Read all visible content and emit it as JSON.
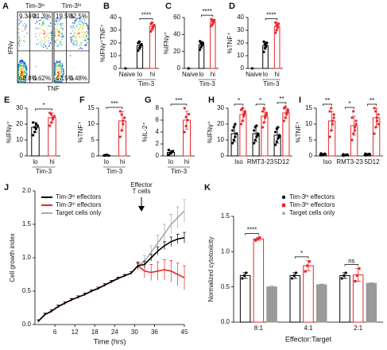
{
  "chart_data": [
    {
      "type": "flow",
      "letter": "A",
      "xlabel": "TNF",
      "ylabel": "IFNγ",
      "plots": [
        {
          "title": "Tim-3ˡᵒ",
          "quadrants": [
            9.34,
            21.3,
            68.8,
            0.62
          ],
          "value_labels": [
            "9.34%",
            "21.3%",
            "68.8%",
            "0.62%"
          ]
        },
        {
          "title": "Tim-3ʰⁱ",
          "quadrants": [
            19.5,
            32.5,
            47.5,
            0.48
          ],
          "value_labels": [
            "19.5%",
            "32.5%",
            "47.5%",
            "0.48%"
          ]
        }
      ]
    },
    {
      "type": "dot_bar",
      "letter": "B",
      "ylabel": "%IFNγ⁺TNF⁺",
      "categories": [
        "Naive",
        "lo",
        "hi"
      ],
      "group_label": "Tim-3",
      "series": [
        {
          "colors": [
            "#000000",
            "#000000",
            "#e8262a"
          ],
          "values": [
            0,
            18,
            33
          ],
          "errors": [
            0,
            3,
            3
          ],
          "points": [
            [
              0
            ],
            [
              14,
              16,
              18,
              19,
              20,
              21,
              17
            ],
            [
              29,
              31,
              33,
              34,
              35,
              36,
              32
            ]
          ]
        }
      ],
      "ylim": [
        0,
        40
      ],
      "yticks": [
        0,
        10,
        20,
        30,
        40
      ],
      "sig": [
        "****"
      ]
    },
    {
      "type": "dot_bar",
      "letter": "C",
      "ylabel": "%IFNγ⁺",
      "categories": [
        "Naive",
        "lo",
        "hi"
      ],
      "group_label": "Tim-3",
      "series": [
        {
          "colors": [
            "#000000",
            "#000000",
            "#e8262a"
          ],
          "values": [
            0,
            28,
            55
          ],
          "errors": [
            0,
            4,
            3
          ],
          "points": [
            [
              0
            ],
            [
              22,
              25,
              28,
              30,
              32,
              30,
              27
            ],
            [
              50,
              52,
              55,
              57,
              58,
              56,
              54
            ]
          ]
        }
      ],
      "ylim": [
        0,
        60
      ],
      "yticks": [
        0,
        20,
        40,
        60
      ],
      "sig": [
        "****"
      ]
    },
    {
      "type": "dot_bar",
      "letter": "D",
      "ylabel": "%TNF⁺",
      "categories": [
        "Naive",
        "lo",
        "hi"
      ],
      "group_label": "Tim-3",
      "series": [
        {
          "colors": [
            "#000000",
            "#000000",
            "#e8262a"
          ],
          "values": [
            0,
            18,
            33
          ],
          "errors": [
            0,
            3,
            3
          ],
          "points": [
            [
              0
            ],
            [
              13,
              16,
              18,
              20,
              21,
              19,
              17
            ],
            [
              28,
              30,
              33,
              35,
              36,
              34,
              32
            ]
          ]
        }
      ],
      "ylim": [
        0,
        40
      ],
      "yticks": [
        0,
        10,
        20,
        30,
        40
      ],
      "sig": [
        "****"
      ]
    },
    {
      "type": "dot_bar",
      "letter": "E",
      "ylabel": "%IFNγ⁺",
      "categories": [
        "lo",
        "hi"
      ],
      "group_label": "Tim-3",
      "series": [
        {
          "colors": [
            "#000000",
            "#e8262a"
          ],
          "values": [
            18,
            24
          ],
          "errors": [
            3,
            3
          ],
          "points": [
            [
              13,
              15,
              17,
              19,
              21,
              18,
              20
            ],
            [
              19,
              21,
              23,
              25,
              27,
              26,
              24
            ]
          ]
        }
      ],
      "ylim": [
        0,
        30
      ],
      "yticks": [
        0,
        10,
        20,
        30
      ],
      "sig": [
        "*"
      ]
    },
    {
      "type": "dot_bar",
      "letter": "F",
      "ylabel": "%TNF⁺",
      "categories": [
        "lo",
        "hi"
      ],
      "group_label": "Tim-3",
      "series": [
        {
          "colors": [
            "#000000",
            "#e8262a"
          ],
          "values": [
            0.2,
            11
          ],
          "errors": [
            0.1,
            3
          ],
          "points": [
            [
              0.1,
              0.2,
              0.3,
              0.1,
              0.2,
              0.3,
              0.2
            ],
            [
              6,
              8,
              10,
              12,
              14,
              13,
              11
            ]
          ]
        }
      ],
      "ylim": [
        0,
        15
      ],
      "yticks": [
        0,
        5,
        10,
        15
      ],
      "sig": [
        "***"
      ]
    },
    {
      "type": "dot_bar",
      "letter": "G",
      "ylabel": "%IL-2⁺",
      "categories": [
        "lo",
        "hi"
      ],
      "group_label": "Tim-3",
      "series": [
        {
          "colors": [
            "#000000",
            "#e8262a"
          ],
          "values": [
            0.6,
            6
          ],
          "errors": [
            0.3,
            1.5
          ],
          "points": [
            [
              0.2,
              0.4,
              0.6,
              0.8,
              1.0,
              0.5,
              0.7
            ],
            [
              4,
              5,
              6,
              7,
              8,
              6.5
            ]
          ]
        }
      ],
      "ylim": [
        0,
        8
      ],
      "yticks": [
        0,
        2,
        4,
        6,
        8
      ],
      "sig": [
        "***"
      ]
    },
    {
      "type": "dot_bar",
      "letter": "H",
      "ylabel": "%IFNγ⁺",
      "categories": [
        "Iso",
        "RMT3-23",
        "5D12"
      ],
      "series": [
        {
          "color": "#000000",
          "values": [
            14,
            14,
            13
          ],
          "errors": [
            5,
            5,
            5
          ],
          "points": [
            [
              8,
              10,
              12,
              14,
              16,
              18,
              20,
              14
            ],
            [
              8,
              10,
              12,
              14,
              16,
              18,
              19,
              13
            ],
            [
              7,
              9,
              11,
              13,
              15,
              17,
              18,
              12
            ]
          ]
        },
        {
          "color": "#e8262a",
          "values": [
            26,
            25,
            27
          ],
          "errors": [
            4,
            4,
            3
          ],
          "points": [
            [
              20,
              22,
              25,
              27,
              29,
              30,
              26,
              28
            ],
            [
              18,
              21,
              24,
              26,
              28,
              30,
              25,
              27
            ],
            [
              22,
              24,
              26,
              28,
              30,
              31,
              27,
              29
            ]
          ]
        }
      ],
      "ylim": [
        0,
        30
      ],
      "yticks": [
        0,
        10,
        20,
        30
      ],
      "sig": [
        "*",
        "*",
        "**"
      ]
    },
    {
      "type": "dot_bar",
      "letter": "I",
      "ylabel": "%TNF⁺",
      "categories": [
        "Iso",
        "RMT3-23",
        "5D12"
      ],
      "series": [
        {
          "color": "#000000",
          "values": [
            0.5,
            0.3,
            0.5
          ],
          "errors": [
            0.2,
            0.2,
            0.2
          ],
          "points": [
            [
              0.2,
              0.4,
              0.5,
              0.6,
              0.8,
              0.3,
              0.5,
              0.7
            ],
            [
              0.1,
              0.2,
              0.3,
              0.4,
              0.5,
              0.2,
              0.3,
              0.4
            ],
            [
              0.2,
              0.4,
              0.5,
              0.6,
              0.7,
              0.3,
              0.5,
              0.6
            ]
          ]
        },
        {
          "color": "#e8262a",
          "values": [
            11,
            9.5,
            12
          ],
          "errors": [
            3,
            3,
            3
          ],
          "points": [
            [
              6,
              8,
              10,
              12,
              14,
              15,
              11,
              13
            ],
            [
              5,
              7,
              9,
              10,
              12,
              14,
              8,
              11
            ],
            [
              7,
              9,
              11,
              13,
              15,
              14,
              12,
              10
            ]
          ]
        }
      ],
      "ylim": [
        0,
        15
      ],
      "yticks": [
        0,
        5,
        10,
        15
      ],
      "sig": [
        "**",
        "*",
        "**"
      ]
    },
    {
      "type": "line",
      "letter": "J",
      "xlabel": "Time (hrs)",
      "ylabel": "Cell growth index",
      "annotation": [
        "Effector",
        "T cells"
      ],
      "x": [
        1,
        3,
        5,
        7,
        9,
        11,
        13,
        15,
        17,
        19,
        21,
        23,
        25,
        27,
        29,
        31,
        33,
        35,
        37,
        39,
        41,
        43,
        45
      ],
      "series": [
        {
          "name": "Tim-3ˡᵒ effectors",
          "color": "#000000",
          "values": [
            0.05,
            0.15,
            0.2,
            0.27,
            0.32,
            0.37,
            0.41,
            0.45,
            0.5,
            0.54,
            0.59,
            0.64,
            0.69,
            0.73,
            0.77,
            0.88,
            0.9,
            1.0,
            1.1,
            1.18,
            1.24,
            1.28,
            1.3
          ],
          "errors": [
            0.02,
            0.02,
            0.02,
            0.02,
            0.02,
            0.02,
            0.02,
            0.02,
            0.02,
            0.02,
            0.02,
            0.02,
            0.02,
            0.02,
            0.02,
            0.04,
            0.05,
            0.05,
            0.06,
            0.06,
            0.07,
            0.07,
            0.08
          ]
        },
        {
          "name": "Tim-3ʰⁱ effectors",
          "color": "#e8262a",
          "values": [
            0.05,
            0.15,
            0.2,
            0.27,
            0.32,
            0.37,
            0.41,
            0.45,
            0.5,
            0.54,
            0.59,
            0.64,
            0.69,
            0.73,
            0.77,
            0.88,
            0.8,
            0.78,
            0.8,
            0.82,
            0.8,
            0.75,
            0.7
          ],
          "errors": [
            0.02,
            0.02,
            0.02,
            0.02,
            0.02,
            0.02,
            0.02,
            0.02,
            0.02,
            0.02,
            0.02,
            0.02,
            0.02,
            0.02,
            0.02,
            0.06,
            0.1,
            0.12,
            0.14,
            0.15,
            0.16,
            0.17,
            0.18
          ]
        },
        {
          "name": "Target cells only",
          "color": "#a8a8a8",
          "values": [
            0.05,
            0.15,
            0.2,
            0.27,
            0.32,
            0.37,
            0.41,
            0.45,
            0.5,
            0.54,
            0.59,
            0.64,
            0.69,
            0.73,
            0.77,
            0.88,
            0.95,
            1.08,
            1.22,
            1.36,
            1.5,
            1.6,
            1.7
          ],
          "errors": [
            0.02,
            0.02,
            0.02,
            0.02,
            0.02,
            0.02,
            0.02,
            0.02,
            0.02,
            0.02,
            0.02,
            0.02,
            0.02,
            0.02,
            0.02,
            0.05,
            0.08,
            0.1,
            0.12,
            0.14,
            0.15,
            0.16,
            0.17
          ]
        }
      ],
      "xlim": [
        0,
        45
      ],
      "xticks": [
        6,
        12,
        18,
        24,
        30,
        36,
        45
      ],
      "ylim": [
        0,
        2
      ],
      "yticks": [
        {
          "value": 0,
          "label": "0.0"
        },
        0.5,
        {
          "value": 1,
          "label": "1.0"
        },
        1.5,
        {
          "value": 2,
          "label": "2.0"
        }
      ]
    },
    {
      "type": "dot_bar",
      "letter": "K",
      "xlabel": "Effector:Target",
      "ylabel": "Normalized cytotoxicity",
      "categories": [
        "8:1",
        "4:1",
        "2:1"
      ],
      "series": [
        {
          "name": "Tim-3ˡᵒ effectors",
          "color": "#000000",
          "marker": "circle",
          "values": [
            0.66,
            0.66,
            0.66
          ],
          "errors": [
            0.04,
            0.04,
            0.04
          ],
          "points": [
            [
              0.62,
              0.66,
              0.7
            ],
            [
              0.62,
              0.66,
              0.7
            ],
            [
              0.62,
              0.66,
              0.7
            ]
          ]
        },
        {
          "name": "Tim-3ʰⁱ effectors",
          "color": "#e8262a",
          "marker": "square",
          "values": [
            1.18,
            0.8,
            0.67
          ],
          "errors": [
            0.02,
            0.07,
            0.09
          ],
          "points": [
            [
              1.16,
              1.18,
              1.2
            ],
            [
              0.72,
              0.8,
              0.86
            ],
            [
              0.58,
              0.66,
              0.76
            ]
          ]
        },
        {
          "name": "Target cells only",
          "color": "#9a9a9a",
          "fill": "#9a9a9a",
          "marker": "triangle",
          "values": [
            0.5,
            0.53,
            0.55
          ],
          "errors": [
            0.01,
            0.01,
            0.01
          ]
        }
      ],
      "ylim": [
        0,
        1.5
      ],
      "yticks": [
        {
          "value": 0,
          "label": "0.0"
        },
        0.5,
        {
          "value": 1,
          "label": "1.0"
        },
        1.5
      ],
      "sig": [
        "****",
        "*",
        "ns"
      ]
    }
  ]
}
